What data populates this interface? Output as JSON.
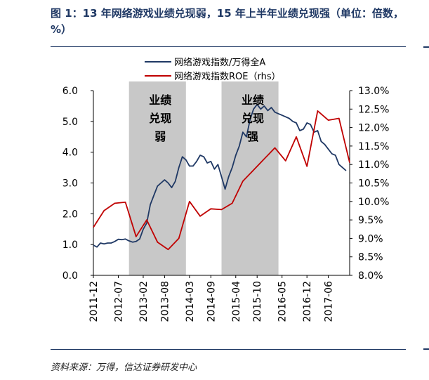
{
  "header": {
    "title": "图 1：13 年网络游戏业绩兑现弱，15 年上半年业绩兑现强（单位：倍数，%）"
  },
  "footer": {
    "source": "资料来源：万得，信达证券研发中心"
  },
  "chart_data": {
    "type": "line",
    "x_ticks": [
      "2011-12",
      "2012-07",
      "2013-02",
      "2013-08",
      "2014-03",
      "2014-09",
      "2015-04",
      "2015-10",
      "2016-05",
      "2016-12",
      "2017-06"
    ],
    "xlim": [
      "2011-12",
      "2017-12"
    ],
    "y_left": {
      "ticks": [
        "0.0",
        "1.0",
        "2.0",
        "3.0",
        "4.0",
        "5.0",
        "6.0"
      ],
      "ylim": [
        0,
        6
      ]
    },
    "y_right": {
      "ticks": [
        "8.0%",
        "8.5%",
        "9.0%",
        "9.5%",
        "10.0%",
        "10.5%",
        "11.0%",
        "11.5%",
        "12.0%",
        "12.5%",
        "13.0%"
      ],
      "ylim": [
        8.0,
        13.0
      ]
    },
    "shaded_regions": [
      {
        "start": "2012-10",
        "end": "2014-02",
        "label": [
          "业绩",
          "兑现",
          "弱"
        ]
      },
      {
        "start": "2014-12",
        "end": "2016-04",
        "label": [
          "业绩",
          "兑现",
          "强"
        ]
      }
    ],
    "series": [
      {
        "name": "网络游戏指数/万得全A",
        "axis": "left",
        "color": "#1f3864",
        "points": [
          [
            "2011-12",
            0.98
          ],
          [
            "2012-01",
            0.92
          ],
          [
            "2012-02",
            1.05
          ],
          [
            "2012-03",
            1.02
          ],
          [
            "2012-04",
            1.05
          ],
          [
            "2012-05",
            1.05
          ],
          [
            "2012-06",
            1.1
          ],
          [
            "2012-07",
            1.17
          ],
          [
            "2012-08",
            1.16
          ],
          [
            "2012-09",
            1.18
          ],
          [
            "2012-10",
            1.12
          ],
          [
            "2012-11",
            1.08
          ],
          [
            "2012-12",
            1.1
          ],
          [
            "2013-01",
            1.18
          ],
          [
            "2013-02",
            1.5
          ],
          [
            "2013-03",
            1.7
          ],
          [
            "2013-04",
            2.3
          ],
          [
            "2013-05",
            2.6
          ],
          [
            "2013-06",
            2.9
          ],
          [
            "2013-07",
            3.0
          ],
          [
            "2013-08",
            3.1
          ],
          [
            "2013-09",
            3.0
          ],
          [
            "2013-10",
            2.85
          ],
          [
            "2013-11",
            3.05
          ],
          [
            "2013-12",
            3.5
          ],
          [
            "2014-01",
            3.85
          ],
          [
            "2014-02",
            3.75
          ],
          [
            "2014-03",
            3.55
          ],
          [
            "2014-04",
            3.55
          ],
          [
            "2014-05",
            3.7
          ],
          [
            "2014-06",
            3.9
          ],
          [
            "2014-07",
            3.85
          ],
          [
            "2014-08",
            3.65
          ],
          [
            "2014-09",
            3.7
          ],
          [
            "2014-10",
            3.45
          ],
          [
            "2014-11",
            3.6
          ],
          [
            "2014-12",
            3.2
          ],
          [
            "2015-01",
            2.8
          ],
          [
            "2015-02",
            3.2
          ],
          [
            "2015-03",
            3.5
          ],
          [
            "2015-04",
            3.9
          ],
          [
            "2015-05",
            4.2
          ],
          [
            "2015-06",
            4.65
          ],
          [
            "2015-07",
            4.5
          ],
          [
            "2015-08",
            5.05
          ],
          [
            "2015-09",
            5.4
          ],
          [
            "2015-10",
            5.55
          ],
          [
            "2015-11",
            5.4
          ],
          [
            "2015-12",
            5.5
          ],
          [
            "2016-01",
            5.35
          ],
          [
            "2016-02",
            5.45
          ],
          [
            "2016-03",
            5.3
          ],
          [
            "2016-04",
            5.25
          ],
          [
            "2016-05",
            5.2
          ],
          [
            "2016-06",
            5.15
          ],
          [
            "2016-07",
            5.1
          ],
          [
            "2016-08",
            5.0
          ],
          [
            "2016-09",
            4.95
          ],
          [
            "2016-10",
            4.7
          ],
          [
            "2016-11",
            4.75
          ],
          [
            "2016-12",
            4.95
          ],
          [
            "2017-01",
            4.9
          ],
          [
            "2017-02",
            4.65
          ],
          [
            "2017-03",
            4.7
          ],
          [
            "2017-04",
            4.35
          ],
          [
            "2017-05",
            4.25
          ],
          [
            "2017-06",
            4.1
          ],
          [
            "2017-07",
            3.95
          ],
          [
            "2017-08",
            3.9
          ],
          [
            "2017-09",
            3.6
          ],
          [
            "2017-10",
            3.5
          ],
          [
            "2017-11",
            3.4
          ]
        ]
      },
      {
        "name": "网络游戏指数ROE（rhs）",
        "axis": "right",
        "color": "#c00000",
        "points": [
          [
            "2011-12",
            9.3
          ],
          [
            "2012-03",
            9.75
          ],
          [
            "2012-06",
            9.95
          ],
          [
            "2012-09",
            9.98
          ],
          [
            "2012-12",
            9.05
          ],
          [
            "2013-03",
            9.5
          ],
          [
            "2013-06",
            8.9
          ],
          [
            "2013-09",
            8.7
          ],
          [
            "2013-12",
            9.0
          ],
          [
            "2014-03",
            10.0
          ],
          [
            "2014-06",
            9.6
          ],
          [
            "2014-09",
            9.8
          ],
          [
            "2014-12",
            9.78
          ],
          [
            "2015-03",
            9.95
          ],
          [
            "2015-06",
            10.55
          ],
          [
            "2015-09",
            10.85
          ],
          [
            "2015-12",
            11.15
          ],
          [
            "2016-03",
            11.45
          ],
          [
            "2016-06",
            11.1
          ],
          [
            "2016-09",
            11.75
          ],
          [
            "2016-12",
            10.95
          ],
          [
            "2017-03",
            12.45
          ],
          [
            "2017-06",
            12.2
          ],
          [
            "2017-09",
            12.25
          ],
          [
            "2017-12",
            11.05
          ]
        ]
      }
    ]
  }
}
